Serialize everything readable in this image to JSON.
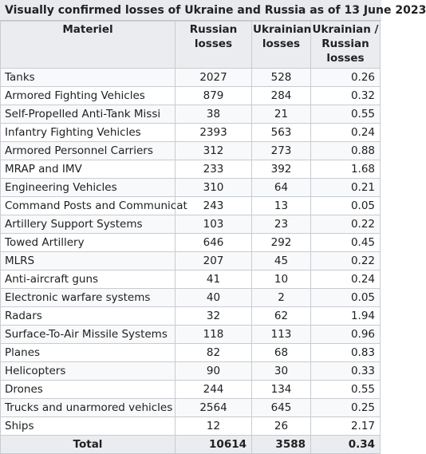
{
  "title": "Visually confirmed losses of Ukraine and Russia as of 13 June 2023",
  "headers": {
    "materiel": "Materiel",
    "russian": "Russian losses",
    "ukrainian": "Ukrainian losses",
    "ratio": "Ukrainian / Russian losses"
  },
  "rows": [
    {
      "name": "Tanks",
      "ru": "2027",
      "ua": "528",
      "ratio": "0.26"
    },
    {
      "name": "Armored Fighting Vehicles",
      "ru": "879",
      "ua": "284",
      "ratio": "0.32"
    },
    {
      "name": "Self-Propelled Anti-Tank Missi",
      "ru": "38",
      "ua": "21",
      "ratio": "0.55"
    },
    {
      "name": "Infantry Fighting Vehicles",
      "ru": "2393",
      "ua": "563",
      "ratio": "0.24"
    },
    {
      "name": "Armored Personnel Carriers",
      "ru": "312",
      "ua": "273",
      "ratio": "0.88"
    },
    {
      "name": "MRAP and IMV",
      "ru": "233",
      "ua": "392",
      "ratio": "1.68"
    },
    {
      "name": "Engineering Vehicles",
      "ru": "310",
      "ua": "64",
      "ratio": "0.21"
    },
    {
      "name": "Command Posts and Communicat",
      "ru": "243",
      "ua": "13",
      "ratio": "0.05"
    },
    {
      "name": "Artillery Support Systems",
      "ru": "103",
      "ua": "23",
      "ratio": "0.22"
    },
    {
      "name": "Towed Artillery",
      "ru": "646",
      "ua": "292",
      "ratio": "0.45"
    },
    {
      "name": "MLRS",
      "ru": "207",
      "ua": "45",
      "ratio": "0.22"
    },
    {
      "name": "Anti-aircraft guns",
      "ru": "41",
      "ua": "10",
      "ratio": "0.24"
    },
    {
      "name": "Electronic warfare systems",
      "ru": "40",
      "ua": "2",
      "ratio": "0.05"
    },
    {
      "name": "Radars",
      "ru": "32",
      "ua": "62",
      "ratio": "1.94"
    },
    {
      "name": "Surface-To-Air Missile Systems",
      "ru": "118",
      "ua": "113",
      "ratio": "0.96"
    },
    {
      "name": "Planes",
      "ru": "82",
      "ua": "68",
      "ratio": "0.83"
    },
    {
      "name": "Helicopters",
      "ru": "90",
      "ua": "30",
      "ratio": "0.33"
    },
    {
      "name": "Drones",
      "ru": "244",
      "ua": "134",
      "ratio": "0.55"
    },
    {
      "name": "Trucks and unarmored vehicles",
      "ru": "2564",
      "ua": "645",
      "ratio": "0.25"
    },
    {
      "name": "Ships",
      "ru": "12",
      "ua": "26",
      "ratio": "2.17"
    }
  ],
  "total": {
    "label": "Total",
    "ru": "10614",
    "ua": "3588",
    "ratio": "0.34"
  }
}
